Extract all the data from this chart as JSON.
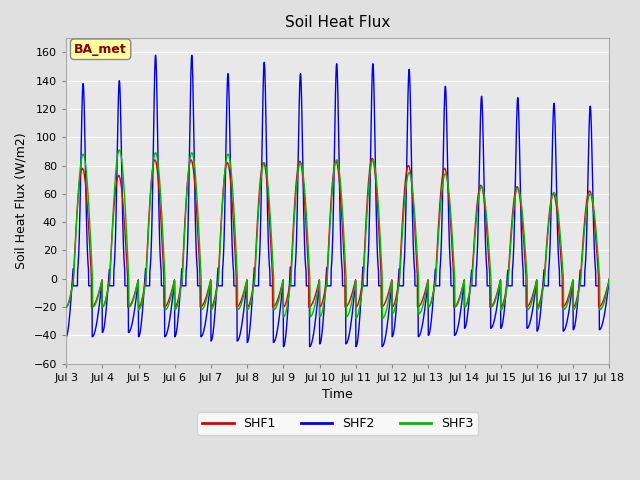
{
  "title": "Soil Heat Flux",
  "xlabel": "Time",
  "ylabel": "Soil Heat Flux (W/m2)",
  "ylim": [
    -60,
    170
  ],
  "yticks": [
    -60,
    -40,
    -20,
    0,
    20,
    40,
    60,
    80,
    100,
    120,
    140,
    160
  ],
  "colors": {
    "SHF1": "#dd0000",
    "SHF2": "#0000ee",
    "SHF3": "#00bb00"
  },
  "legend_labels": [
    "SHF1",
    "SHF2",
    "SHF3"
  ],
  "annotation_text": "BA_met",
  "annotation_color": "#8b0000",
  "annotation_bg": "#ffffa0",
  "bg_color": "#e0e0e0",
  "plot_bg": "#e8e8e8",
  "line_width": 1.0,
  "start_day": 3,
  "end_day": 18,
  "num_days": 15,
  "x_tick_labels": [
    "Jul 3",
    "Jul 4",
    "Jul 5",
    "Jul 6",
    "Jul 7",
    "Jul 8",
    "Jul 9",
    "Jul 10",
    "Jul 11",
    "Jul 12",
    "Jul 13",
    "Jul 14",
    "Jul 15",
    "Jul 16",
    "Jul 17",
    "Jul 18"
  ],
  "x_tick_positions": [
    3,
    4,
    5,
    6,
    7,
    8,
    9,
    10,
    11,
    12,
    13,
    14,
    15,
    16,
    17,
    18
  ],
  "shf1_day_amps": [
    78,
    73,
    84,
    84,
    82,
    82,
    83,
    83,
    85,
    80,
    78,
    66,
    65,
    60,
    62,
    60
  ],
  "shf1_night_val": -20,
  "shf2_day_amps": [
    138,
    140,
    158,
    158,
    145,
    153,
    145,
    152,
    152,
    148,
    136,
    129,
    128,
    124,
    122,
    121
  ],
  "shf2_night_vals": [
    -41,
    -38,
    -41,
    -41,
    -44,
    -45,
    -48,
    -46,
    -48,
    -41,
    -40,
    -35,
    -35,
    -37,
    -36,
    -41
  ],
  "shf3_day_amps": [
    88,
    91,
    89,
    89,
    88,
    82,
    82,
    84,
    84,
    75,
    74,
    65,
    64,
    61,
    60,
    58
  ],
  "shf3_night_vals": [
    -20,
    -20,
    -22,
    -22,
    -22,
    -22,
    -27,
    -27,
    -28,
    -25,
    -20,
    -20,
    -22,
    -22,
    -22,
    -22
  ]
}
